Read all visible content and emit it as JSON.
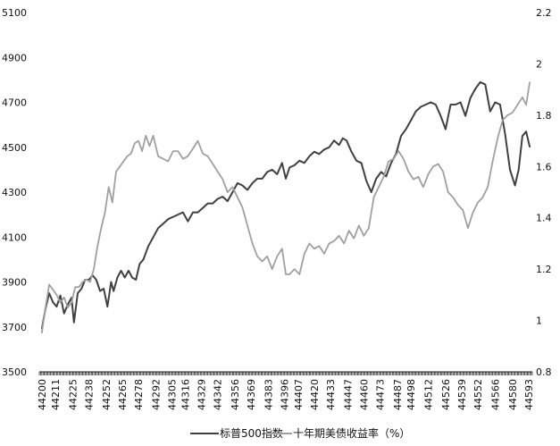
{
  "chart_data": {
    "type": "line",
    "x_tick_labels": [
      "44200",
      "44211",
      "44225",
      "44238",
      "44252",
      "44265",
      "44278",
      "44292",
      "44305",
      "44316",
      "44329",
      "44342",
      "44356",
      "44369",
      "44383",
      "44396",
      "44407",
      "44420",
      "44433",
      "44447",
      "44460",
      "44473",
      "44487",
      "44498",
      "44512",
      "44526",
      "44539",
      "44552",
      "44566",
      "44580",
      "44593"
    ],
    "x_ticks": [
      44200,
      44211,
      44225,
      44238,
      44252,
      44265,
      44278,
      44292,
      44305,
      44316,
      44329,
      44342,
      44356,
      44369,
      44383,
      44396,
      44407,
      44420,
      44433,
      44447,
      44460,
      44473,
      44487,
      44498,
      44512,
      44526,
      44539,
      44552,
      44566,
      44580,
      44593
    ],
    "xlim": [
      44198,
      44596
    ],
    "y_left": {
      "ticks": [
        3500,
        3700,
        3900,
        4100,
        4300,
        4500,
        4700,
        4900,
        5100
      ],
      "tick_labels": [
        "3500",
        "3700",
        "3900",
        "4100",
        "4300",
        "4500",
        "4700",
        "4900",
        "5100"
      ],
      "ylim": [
        3500,
        5100
      ]
    },
    "y_right": {
      "ticks": [
        0.8,
        1.0,
        1.2,
        1.4,
        1.6,
        1.8,
        2.0,
        2.2
      ],
      "tick_labels": [
        "0.8",
        "1",
        "1.2",
        "1.4",
        "1.6",
        "1.8",
        "2",
        "2.2"
      ],
      "ylim": [
        0.8,
        2.2
      ]
    },
    "legend_position": "bottom-center",
    "series": [
      {
        "name": "标普500指数",
        "axis": "left",
        "color": "#404040",
        "x": [
          44200,
          44203,
          44206,
          44209,
          44212,
          44215,
          44218,
          44221,
          44224,
          44226,
          44229,
          44232,
          44235,
          44238,
          44241,
          44244,
          44247,
          44250,
          44253,
          44256,
          44258,
          44261,
          44264,
          44267,
          44270,
          44273,
          44276,
          44279,
          44282,
          44286,
          44290,
          44294,
          44298,
          44302,
          44306,
          44310,
          44314,
          44318,
          44322,
          44326,
          44330,
          44334,
          44338,
          44342,
          44346,
          44350,
          44354,
          44358,
          44362,
          44366,
          44370,
          44374,
          44378,
          44382,
          44386,
          44390,
          44394,
          44397,
          44400,
          44404,
          44408,
          44412,
          44416,
          44420,
          44424,
          44428,
          44432,
          44436,
          44440,
          44443,
          44446,
          44450,
          44454,
          44458,
          44462,
          44466,
          44470,
          44474,
          44478,
          44482,
          44486,
          44490,
          44494,
          44498,
          44502,
          44506,
          44510,
          44514,
          44518,
          44522,
          44526,
          44530,
          44534,
          44538,
          44542,
          44546,
          44550,
          44554,
          44558,
          44562,
          44566,
          44570,
          44574,
          44578,
          44582,
          44585,
          44588,
          44591,
          44594
        ],
        "y": [
          3690,
          3780,
          3850,
          3810,
          3790,
          3840,
          3760,
          3800,
          3830,
          3720,
          3850,
          3870,
          3910,
          3910,
          3930,
          3910,
          3860,
          3870,
          3790,
          3900,
          3860,
          3920,
          3950,
          3920,
          3950,
          3920,
          3910,
          3980,
          4000,
          4060,
          4100,
          4140,
          4160,
          4180,
          4190,
          4200,
          4210,
          4170,
          4210,
          4210,
          4230,
          4250,
          4250,
          4270,
          4280,
          4260,
          4300,
          4340,
          4330,
          4310,
          4340,
          4360,
          4360,
          4390,
          4400,
          4380,
          4430,
          4360,
          4410,
          4420,
          4440,
          4430,
          4460,
          4480,
          4470,
          4490,
          4500,
          4530,
          4510,
          4540,
          4530,
          4480,
          4440,
          4430,
          4350,
          4300,
          4360,
          4390,
          4370,
          4430,
          4470,
          4550,
          4580,
          4620,
          4660,
          4680,
          4690,
          4700,
          4690,
          4640,
          4580,
          4690,
          4690,
          4700,
          4640,
          4720,
          4760,
          4790,
          4780,
          4660,
          4700,
          4690,
          4560,
          4400,
          4330,
          4400,
          4550,
          4570,
          4500
        ]
      },
      {
        "name": "十年期美债收益率（%）",
        "axis": "right",
        "color": "#a0a0a0",
        "x": [
          44200,
          44203,
          44206,
          44209,
          44212,
          44215,
          44218,
          44221,
          44224,
          44227,
          44230,
          44233,
          44236,
          44239,
          44242,
          44245,
          44248,
          44251,
          44254,
          44257,
          44260,
          44263,
          44266,
          44269,
          44272,
          44275,
          44278,
          44281,
          44284,
          44287,
          44290,
          44294,
          44298,
          44302,
          44306,
          44310,
          44314,
          44318,
          44322,
          44326,
          44330,
          44334,
          44338,
          44342,
          44346,
          44350,
          44354,
          44358,
          44362,
          44366,
          44370,
          44374,
          44378,
          44382,
          44386,
          44390,
          44394,
          44397,
          44400,
          44404,
          44408,
          44412,
          44416,
          44420,
          44424,
          44428,
          44432,
          44436,
          44440,
          44444,
          44448,
          44452,
          44456,
          44460,
          44464,
          44468,
          44472,
          44476,
          44480,
          44484,
          44488,
          44492,
          44496,
          44500,
          44504,
          44508,
          44512,
          44516,
          44520,
          44524,
          44528,
          44532,
          44536,
          44540,
          44544,
          44548,
          44552,
          44556,
          44560,
          44564,
          44568,
          44572,
          44576,
          44580,
          44584,
          44588,
          44591,
          44594
        ],
        "y": [
          0.95,
          1.05,
          1.14,
          1.12,
          1.1,
          1.07,
          1.09,
          1.05,
          1.07,
          1.13,
          1.13,
          1.15,
          1.16,
          1.15,
          1.2,
          1.29,
          1.36,
          1.42,
          1.52,
          1.46,
          1.58,
          1.6,
          1.62,
          1.64,
          1.65,
          1.69,
          1.7,
          1.66,
          1.72,
          1.68,
          1.72,
          1.64,
          1.63,
          1.62,
          1.66,
          1.66,
          1.63,
          1.64,
          1.67,
          1.7,
          1.65,
          1.64,
          1.61,
          1.58,
          1.55,
          1.5,
          1.52,
          1.48,
          1.44,
          1.37,
          1.3,
          1.25,
          1.23,
          1.25,
          1.2,
          1.25,
          1.28,
          1.18,
          1.18,
          1.2,
          1.18,
          1.26,
          1.3,
          1.28,
          1.29,
          1.26,
          1.3,
          1.31,
          1.33,
          1.3,
          1.35,
          1.32,
          1.37,
          1.33,
          1.36,
          1.48,
          1.52,
          1.56,
          1.62,
          1.63,
          1.66,
          1.63,
          1.58,
          1.55,
          1.56,
          1.52,
          1.57,
          1.6,
          1.61,
          1.58,
          1.5,
          1.48,
          1.45,
          1.43,
          1.36,
          1.42,
          1.46,
          1.48,
          1.52,
          1.62,
          1.71,
          1.78,
          1.8,
          1.81,
          1.84,
          1.87,
          1.84,
          1.93
        ]
      }
    ]
  }
}
